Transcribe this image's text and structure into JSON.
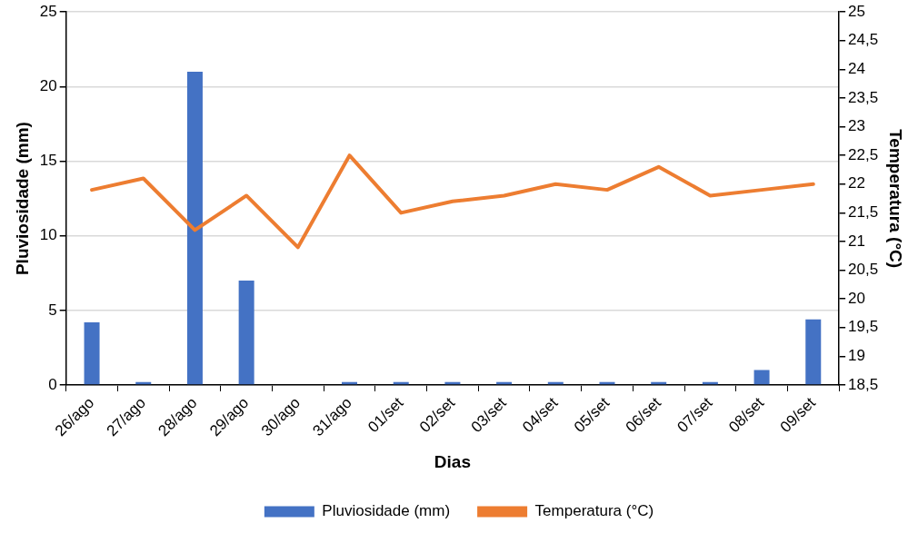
{
  "chart_data": {
    "type": "bar",
    "xlabel": "Dias",
    "ylabel": "Pluviosidade (mm)",
    "y2label": "Temperatura (°C)",
    "categories": [
      "26/ago",
      "27/ago",
      "28/ago",
      "29/ago",
      "30/ago",
      "31/ago",
      "01/set",
      "02/set",
      "03/set",
      "04/set",
      "05/set",
      "06/set",
      "07/set",
      "08/set",
      "09/set"
    ],
    "series": [
      {
        "name": "Pluviosidade (mm)",
        "color": "#4472c4",
        "values": [
          4.2,
          0.2,
          21.0,
          7.0,
          0,
          0.2,
          0.2,
          0.2,
          0.2,
          0.2,
          0.2,
          0.2,
          0.2,
          1.0,
          4.4
        ]
      },
      {
        "name": "Temperatura (°C)",
        "type": "line",
        "axis": "y2",
        "color": "#ed7d31",
        "values": [
          21.9,
          22.1,
          21.2,
          21.8,
          20.9,
          22.5,
          21.5,
          21.7,
          21.8,
          22.0,
          21.9,
          22.3,
          21.8,
          21.9,
          22.0
        ]
      }
    ],
    "ylim": [
      0,
      25
    ],
    "yticks": [
      0,
      5,
      10,
      15,
      20,
      25
    ],
    "y2lim": [
      18.5,
      25
    ],
    "y2ticks": [
      {
        "value": 18.5,
        "label": "18,5"
      },
      19,
      {
        "value": 19.5,
        "label": "19,5"
      },
      20,
      {
        "value": 20.5,
        "label": "20,5"
      },
      21,
      {
        "value": 21.5,
        "label": "21,5"
      },
      22,
      {
        "value": 22.5,
        "label": "22,5"
      },
      23,
      {
        "value": 23.5,
        "label": "23,5"
      },
      24,
      {
        "value": 24.5,
        "label": "24,5"
      },
      25
    ],
    "grid": "y",
    "legend": "bottom",
    "marker": "none",
    "line_style": "solid"
  }
}
